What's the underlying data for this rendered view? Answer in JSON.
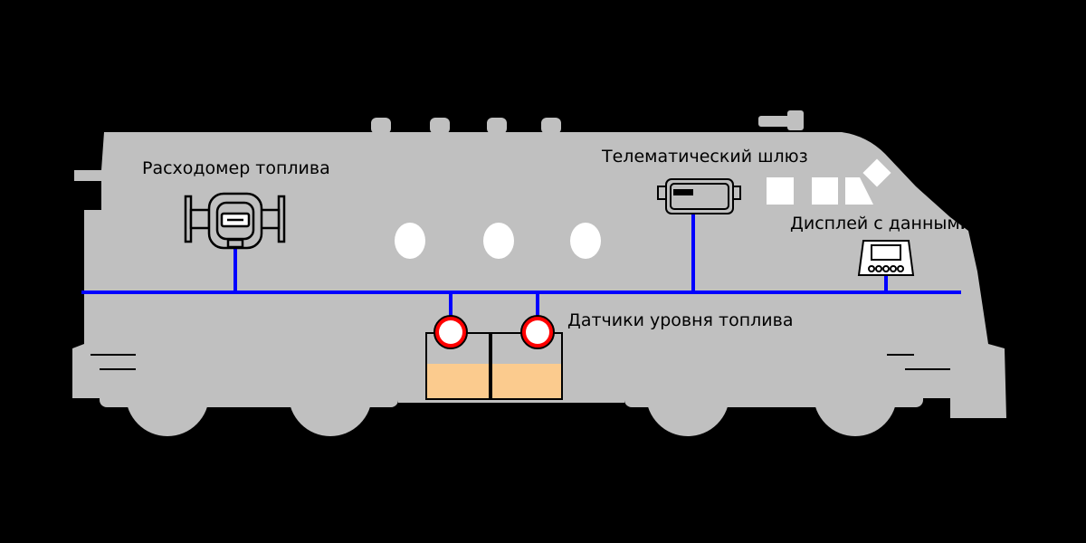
{
  "labels": {
    "flowmeter": "Расходомер топлива",
    "gateway": "Телематический шлюз",
    "display": "Дисплей с данными",
    "sensors": "Датчики уровня топлива"
  },
  "colors": {
    "background": "#000000",
    "locomotive": "#c0c0c0",
    "bus_line": "#0000ff",
    "sensor_fill": "#ff0000",
    "tank_fill": "#fbcb8e",
    "device_outline": "#000000",
    "window": "#ffffff"
  }
}
